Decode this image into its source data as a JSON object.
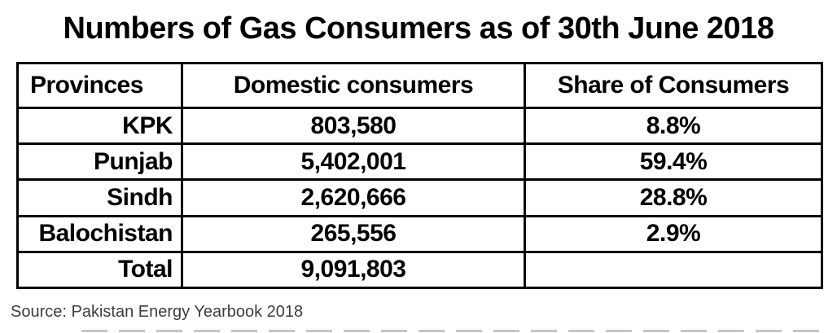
{
  "chart_data": {
    "type": "table",
    "title": "Numbers of Gas Consumers as of 30th June 2018",
    "columns": [
      "Provinces",
      "Domestic consumers",
      "Share of Consumers"
    ],
    "rows": [
      [
        "KPK",
        "803,580",
        "8.8%"
      ],
      [
        "Punjab",
        "5,402,001",
        "59.4%"
      ],
      [
        "Sindh",
        "2,620,666",
        "28.8%"
      ],
      [
        "Balochistan",
        "265,556",
        "2.9%"
      ],
      [
        "Total",
        "9,091,803",
        ""
      ]
    ],
    "source": "Source: Pakistan Energy Yearbook 2018"
  },
  "colors": {
    "text": "#000000",
    "border": "#000000",
    "source_text": "#3d3d3d",
    "background": "#ffffff",
    "crop_marks": "#c6c6c6"
  }
}
